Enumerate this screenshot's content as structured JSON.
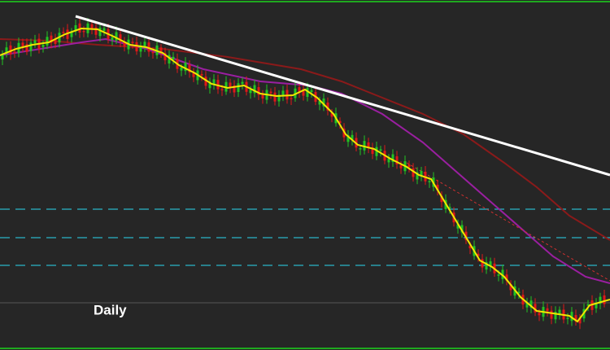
{
  "timeframe_label": "Daily"
}
